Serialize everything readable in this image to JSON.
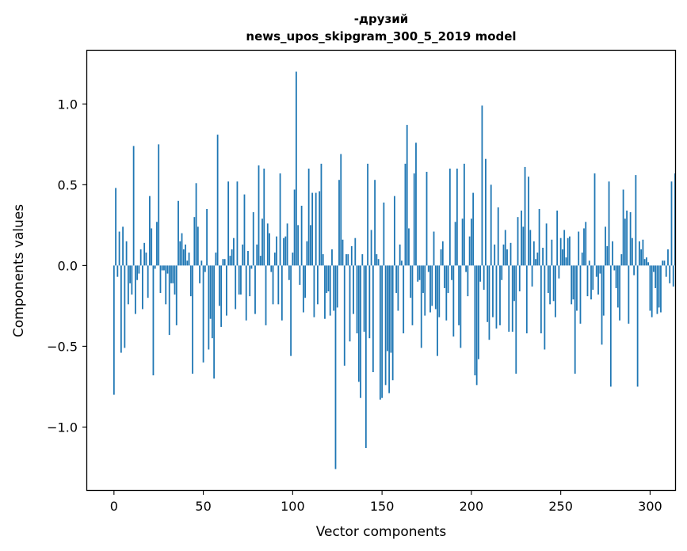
{
  "chart_data": {
    "type": "bar",
    "title_line1": "-друзий",
    "title_line2": "news_upos_skipgram_300_5_2019 model",
    "xlabel": "Vector components",
    "ylabel": "Components values",
    "xlim": [
      -15,
      314
    ],
    "ylim": [
      -1.39,
      1.33
    ],
    "xticks": [
      0,
      50,
      100,
      150,
      200,
      250,
      300
    ],
    "xtick_labels": [
      "0",
      "50",
      "100",
      "150",
      "200",
      "250",
      "300"
    ],
    "yticks": [
      -1.0,
      -0.5,
      0.0,
      0.5,
      1.0
    ],
    "ytick_labels": [
      "−1.0",
      "−0.5",
      "0.0",
      "0.5",
      "1.0"
    ],
    "grid": false,
    "bar_color": "#1f77b4",
    "values": [
      -0.8,
      0.48,
      -0.07,
      0.21,
      -0.54,
      0.24,
      -0.51,
      0.15,
      -0.24,
      -0.11,
      -0.18,
      0.74,
      -0.3,
      -0.09,
      -0.05,
      0.1,
      -0.27,
      0.14,
      0.08,
      -0.2,
      0.43,
      0.23,
      -0.68,
      -0.02,
      0.27,
      0.75,
      -0.17,
      -0.03,
      -0.03,
      -0.24,
      -0.05,
      -0.43,
      -0.11,
      -0.11,
      -0.18,
      -0.37,
      0.4,
      0.15,
      0.2,
      0.1,
      0.13,
      0.03,
      0.08,
      -0.19,
      -0.67,
      0.3,
      0.51,
      0.24,
      -0.11,
      0.03,
      -0.6,
      -0.04,
      0.35,
      -0.52,
      -0.33,
      -0.45,
      -0.7,
      0.08,
      0.81,
      -0.25,
      -0.38,
      0.04,
      0.04,
      -0.31,
      0.52,
      0.06,
      0.1,
      0.17,
      -0.27,
      0.52,
      -0.18,
      -0.18,
      0.13,
      0.44,
      -0.34,
      0.09,
      -0.19,
      -0.02,
      0.33,
      -0.3,
      0.13,
      0.62,
      0.06,
      0.29,
      0.6,
      -0.37,
      0.26,
      0.2,
      -0.04,
      -0.24,
      0.08,
      0.18,
      -0.24,
      0.57,
      -0.34,
      0.17,
      0.18,
      0.26,
      -0.09,
      -0.56,
      0.08,
      0.47,
      1.2,
      0.25,
      -0.12,
      0.37,
      -0.29,
      -0.2,
      0.15,
      0.6,
      0.25,
      0.45,
      -0.32,
      0.45,
      -0.24,
      0.46,
      0.63,
      0.07,
      -0.33,
      -0.17,
      -0.16,
      -0.31,
      0.1,
      -0.28,
      -1.26,
      -0.26,
      0.53,
      0.69,
      0.16,
      -0.62,
      0.07,
      0.07,
      -0.47,
      0.12,
      -0.3,
      0.17,
      -0.42,
      -0.72,
      -0.82,
      0.07,
      -0.41,
      -1.13,
      0.63,
      -0.45,
      0.22,
      -0.66,
      0.53,
      0.07,
      0.04,
      -0.83,
      -0.82,
      0.39,
      -0.74,
      -0.53,
      -0.79,
      -0.54,
      -0.71,
      0.43,
      -0.17,
      -0.28,
      0.13,
      0.03,
      -0.42,
      0.63,
      0.87,
      0.23,
      -0.2,
      -0.37,
      0.57,
      0.76,
      -0.1,
      -0.09,
      -0.51,
      -0.17,
      -0.31,
      0.58,
      -0.04,
      -0.29,
      -0.25,
      0.21,
      -0.27,
      -0.56,
      -0.32,
      0.1,
      0.15,
      -0.14,
      -0.34,
      -0.17,
      0.6,
      -0.09,
      -0.44,
      0.27,
      0.6,
      -0.37,
      -0.51,
      0.29,
      0.63,
      -0.04,
      -0.19,
      0.18,
      0.29,
      0.45,
      -0.68,
      -0.74,
      -0.58,
      -0.1,
      0.99,
      -0.15,
      0.66,
      -0.35,
      -0.46,
      0.5,
      -0.32,
      0.13,
      -0.39,
      0.36,
      -0.37,
      -0.09,
      0.13,
      0.22,
      0.1,
      -0.41,
      0.14,
      -0.41,
      -0.22,
      -0.67,
      0.3,
      -0.16,
      0.34,
      0.24,
      0.61,
      -0.42,
      0.55,
      0.22,
      -0.13,
      0.15,
      0.04,
      0.08,
      0.35,
      -0.42,
      0.11,
      -0.52,
      0.26,
      -0.17,
      -0.24,
      0.16,
      -0.22,
      -0.32,
      0.34,
      -0.08,
      0.17,
      0.1,
      0.22,
      0.05,
      0.17,
      0.18,
      -0.24,
      -0.21,
      -0.67,
      -0.28,
      0.21,
      -0.36,
      0.08,
      0.23,
      0.27,
      -0.19,
      0.03,
      -0.21,
      -0.15,
      0.57,
      -0.07,
      -0.18,
      -0.05,
      -0.49,
      -0.31,
      0.24,
      0.12,
      0.52,
      -0.75,
      0.15,
      -0.03,
      -0.14,
      -0.26,
      -0.34,
      0.07,
      0.47,
      0.29,
      0.34,
      -0.36,
      0.33,
      0.17,
      -0.06,
      0.56,
      -0.75,
      0.15,
      0.1,
      0.16,
      0.04,
      0.05,
      0.02,
      -0.28,
      -0.32,
      -0.04,
      -0.14,
      -0.3,
      -0.26,
      -0.29,
      0.03,
      0.03,
      -0.07,
      0.1,
      -0.11,
      0.52,
      -0.13,
      0.57
    ]
  }
}
